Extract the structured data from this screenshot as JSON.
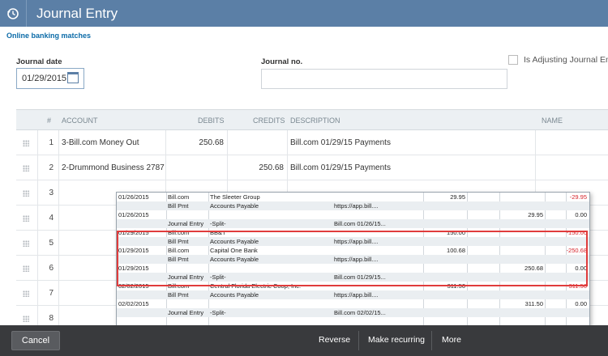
{
  "header": {
    "title": "Journal Entry",
    "history_icon": "history-icon"
  },
  "subnav": {
    "link": "Online banking matches"
  },
  "form": {
    "journal_date_label": "Journal date",
    "journal_date_value": "01/29/2015",
    "journal_no_label": "Journal no.",
    "journal_no_value": "",
    "adjusting_label": "Is Adjusting Journal En"
  },
  "grid": {
    "columns": {
      "num": "#",
      "account": "ACCOUNT",
      "debits": "DEBITS",
      "credits": "CREDITS",
      "description": "DESCRIPTION",
      "name": "NAME"
    },
    "rows": [
      {
        "num": "1",
        "account": "3-Bill.com Money Out",
        "debit": "250.68",
        "credit": "",
        "description": "Bill.com 01/29/15 Payments"
      },
      {
        "num": "2",
        "account": "2-Drummond Business 2787",
        "debit": "",
        "credit": "250.68",
        "description": "Bill.com 01/29/15 Payments"
      },
      {
        "num": "3",
        "account": "",
        "debit": "",
        "credit": "",
        "description": ""
      },
      {
        "num": "4",
        "account": "",
        "debit": "",
        "credit": "",
        "description": ""
      },
      {
        "num": "5",
        "account": "",
        "debit": "",
        "credit": "",
        "description": ""
      },
      {
        "num": "6",
        "account": "",
        "debit": "",
        "credit": "",
        "description": ""
      },
      {
        "num": "7",
        "account": "",
        "debit": "",
        "credit": "",
        "description": ""
      },
      {
        "num": "8",
        "account": "",
        "debit": "",
        "credit": "",
        "description": ""
      }
    ]
  },
  "popup": {
    "rows": [
      {
        "date": "01/26/2015",
        "type": "Bill.com",
        "name": "The Sleeter Group",
        "memo": "",
        "c1": "29.95",
        "c2": "",
        "bal": "-29.95",
        "neg": true
      },
      {
        "date": "",
        "type": "Bill Pmt",
        "name": "Accounts Payable",
        "memo": "https://app.bill....",
        "c1": "",
        "c2": "",
        "bal": "",
        "neg": false
      },
      {
        "date": "01/26/2015",
        "type": "",
        "name": "",
        "memo": "",
        "c1": "",
        "c2": "29.95",
        "bal": "0.00",
        "neg": false
      },
      {
        "date": "",
        "type": "Journal Entry",
        "name": "-Split-",
        "memo": "Bill.com 01/26/15...",
        "c1": "",
        "c2": "",
        "bal": "",
        "neg": false
      },
      {
        "date": "01/29/2015",
        "type": "Bill.com",
        "name": "BB&T",
        "memo": "",
        "c1": "150.00",
        "c2": "",
        "bal": "-150.00",
        "neg": true
      },
      {
        "date": "",
        "type": "Bill Pmt",
        "name": "Accounts Payable",
        "memo": "https://app.bill....",
        "c1": "",
        "c2": "",
        "bal": "",
        "neg": false
      },
      {
        "date": "01/29/2015",
        "type": "Bill.com",
        "name": "Capital One Bank",
        "memo": "",
        "c1": "100.68",
        "c2": "",
        "bal": "-250.68",
        "neg": true
      },
      {
        "date": "",
        "type": "Bill Pmt",
        "name": "Accounts Payable",
        "memo": "https://app.bill....",
        "c1": "",
        "c2": "",
        "bal": "",
        "neg": false
      },
      {
        "date": "01/29/2015",
        "type": "",
        "name": "",
        "memo": "",
        "c1": "",
        "c2": "250.68",
        "bal": "0.00",
        "neg": false
      },
      {
        "date": "",
        "type": "Journal Entry",
        "name": "-Split-",
        "memo": "Bill.com 01/29/15...",
        "c1": "",
        "c2": "",
        "bal": "",
        "neg": false
      },
      {
        "date": "02/02/2015",
        "type": "Bill.com",
        "name": "Central Florida Electric Coop, Inc.",
        "memo": "",
        "c1": "311.50",
        "c2": "",
        "bal": "-311.50",
        "neg": true
      },
      {
        "date": "",
        "type": "Bill Pmt",
        "name": "Accounts Payable",
        "memo": "https://app.bill....",
        "c1": "",
        "c2": "",
        "bal": "",
        "neg": false
      },
      {
        "date": "02/02/2015",
        "type": "",
        "name": "",
        "memo": "",
        "c1": "",
        "c2": "311.50",
        "bal": "0.00",
        "neg": false
      },
      {
        "date": "",
        "type": "Journal Entry",
        "name": "-Split-",
        "memo": "Bill.com 02/02/15...",
        "c1": "",
        "c2": "",
        "bal": "",
        "neg": false
      }
    ]
  },
  "footer": {
    "cancel": "Cancel",
    "reverse": "Reverse",
    "make_recurring": "Make recurring",
    "more": "More"
  },
  "colors": {
    "header_bg": "#5b7fa6",
    "footer_bg": "#393a3d",
    "negative": "#d6242b",
    "highlight": "#e03c3c"
  }
}
